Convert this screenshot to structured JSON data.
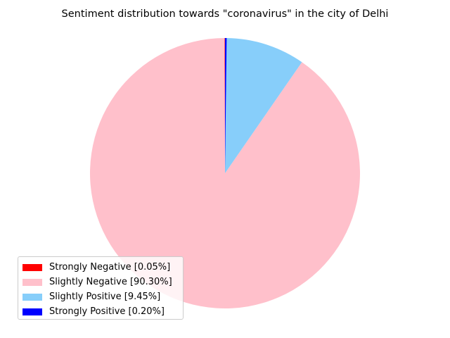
{
  "chart_data": {
    "type": "pie",
    "title": "Sentiment distribution towards \"coronavirus\" in the city of Delhi",
    "slices": [
      {
        "label": "Strongly Negative",
        "legend_label": "Strongly Negative [0.05%]",
        "value": 0.05,
        "color": "#ff0000"
      },
      {
        "label": "Slightly Negative",
        "legend_label": "Slightly Negative [90.30%]",
        "value": 90.3,
        "color": "#ffc0cb"
      },
      {
        "label": "Slightly Positive",
        "legend_label": "Slightly Positive [9.45%]",
        "value": 9.45,
        "color": "#87cefa"
      },
      {
        "label": "Strongly Positive",
        "legend_label": "Strongly Positive [0.20%]",
        "value": 0.2,
        "color": "#0000ff"
      }
    ],
    "start_angle_deg": 90,
    "direction": "counterclockwise",
    "legend_position": "lower-left"
  }
}
